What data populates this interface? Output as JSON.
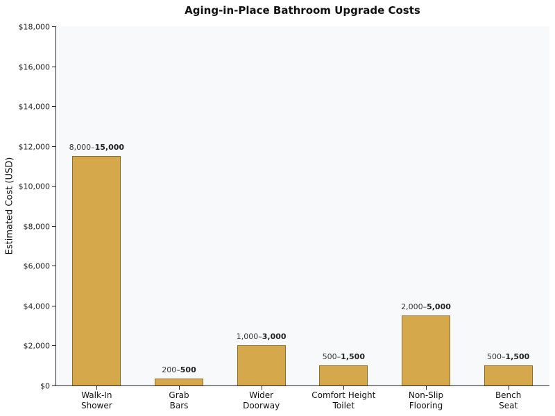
{
  "chart_data": {
    "type": "bar",
    "title": "Aging-in-Place Bathroom Upgrade Costs",
    "xlabel": "",
    "ylabel": "Estimated Cost (USD)",
    "ylim": [
      0,
      18000
    ],
    "yticks": [
      0,
      2000,
      4000,
      6000,
      8000,
      10000,
      12000,
      14000,
      16000,
      18000
    ],
    "ytick_labels": [
      "$0",
      "$2,000",
      "$4,000",
      "$6,000",
      "$8,000",
      "$10,000",
      "$12,000",
      "$14,000",
      "$16,000",
      "$18,000"
    ],
    "categories": [
      "Walk-In Shower",
      "Grab Bars",
      "Wider Doorway",
      "Comfort Height Toilet",
      "Non-Slip Flooring",
      "Bench Seat"
    ],
    "category_lines": [
      [
        "Walk-In",
        "Shower"
      ],
      [
        "Grab",
        "Bars"
      ],
      [
        "Wider",
        "Doorway"
      ],
      [
        "Comfort Height",
        "Toilet"
      ],
      [
        "Non-Slip",
        "Flooring"
      ],
      [
        "Bench",
        "Seat"
      ]
    ],
    "values": [
      11500,
      350,
      2000,
      1000,
      3500,
      1000
    ],
    "ranges": [
      {
        "low": "8,000",
        "high": "15,000"
      },
      {
        "low": "200",
        "high": "500"
      },
      {
        "low": "1,000",
        "high": "3,000"
      },
      {
        "low": "500",
        "high": "1,500"
      },
      {
        "low": "2,000",
        "high": "5,000"
      },
      {
        "low": "500",
        "high": "1,500"
      }
    ],
    "annotations": [
      "8,000–15,000",
      "200–500",
      "1,000–3,000",
      "500–1,500",
      "2,000–5,000",
      "500–1,500"
    ],
    "bar_color": "#d4a84b",
    "bar_edge_color": "#8a6d2f",
    "background_color": "#f8f9fb",
    "grid": false,
    "legend": null
  }
}
